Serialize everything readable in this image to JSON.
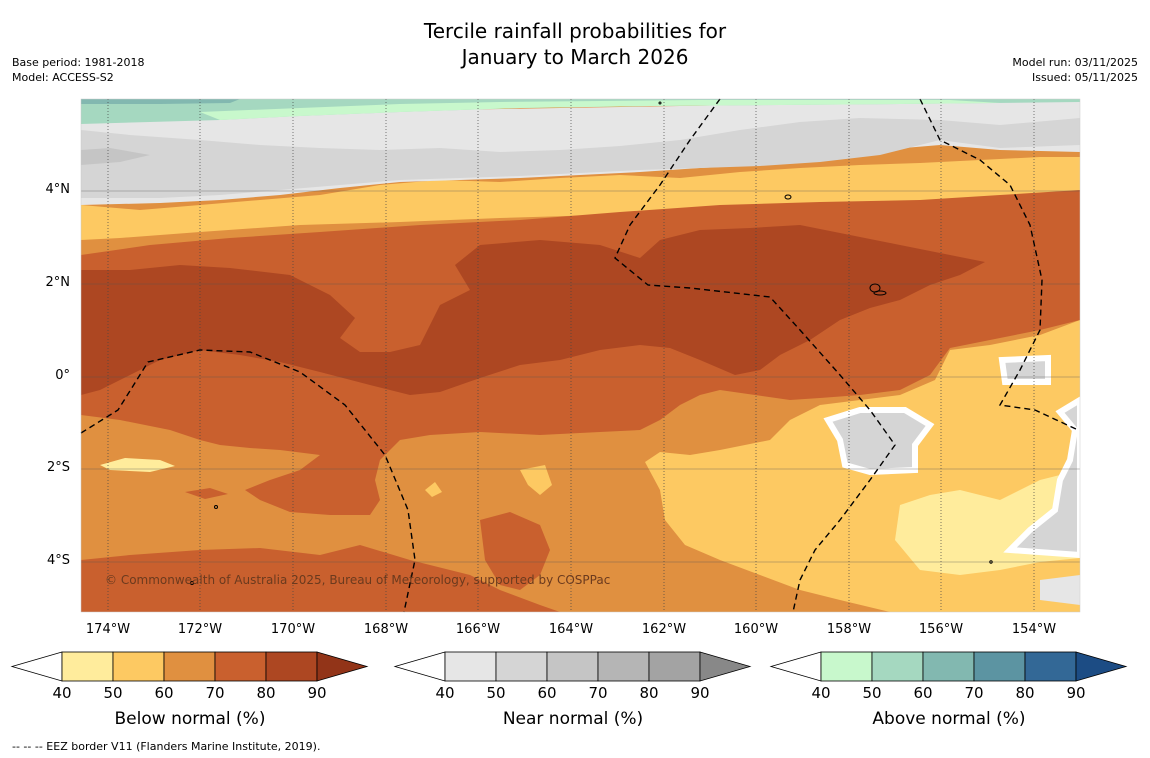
{
  "title": {
    "line1": "Tercile rainfall probabilities for",
    "line2": "January to March 2026"
  },
  "meta": {
    "base_period": "Base period: 1981-2018",
    "model": "Model: ACCESS-S2",
    "model_run": "Model run: 03/11/2025",
    "issued": "Issued: 05/11/2025"
  },
  "axes": {
    "lat_labels": [
      "4°N",
      "2°N",
      "0°",
      "2°S",
      "4°S"
    ],
    "lon_labels": [
      "174°W",
      "172°W",
      "170°W",
      "168°W",
      "166°W",
      "164°W",
      "162°W",
      "160°W",
      "158°W",
      "156°W",
      "154°W"
    ]
  },
  "copyright": "© Commonwealth of Australia 2025, Bureau of Meteorology, supported by COSPPac",
  "colorbars": [
    {
      "title": "Below normal (%)",
      "ticks": [
        "40",
        "50",
        "60",
        "70",
        "80",
        "90"
      ],
      "colors": [
        "#ffffff",
        "#ffec9c",
        "#fdc962",
        "#e09040",
        "#c9602e",
        "#ad4722",
        "#923418"
      ]
    },
    {
      "title": "Near normal (%)",
      "ticks": [
        "40",
        "50",
        "60",
        "70",
        "80",
        "90"
      ],
      "colors": [
        "#ffffff",
        "#e6e6e6",
        "#d5d5d5",
        "#c5c5c5",
        "#b5b5b5",
        "#a3a3a3",
        "#888888"
      ]
    },
    {
      "title": "Above normal (%)",
      "ticks": [
        "40",
        "50",
        "60",
        "70",
        "80",
        "90"
      ],
      "colors": [
        "#ffffff",
        "#c8f8cc",
        "#a5d8c0",
        "#82b8b0",
        "#5c94a2",
        "#336896",
        "#1c4c84"
      ]
    }
  ],
  "footnote": "--  --  -- EEZ border V11 (Flanders Marine Institute, 2019)."
}
